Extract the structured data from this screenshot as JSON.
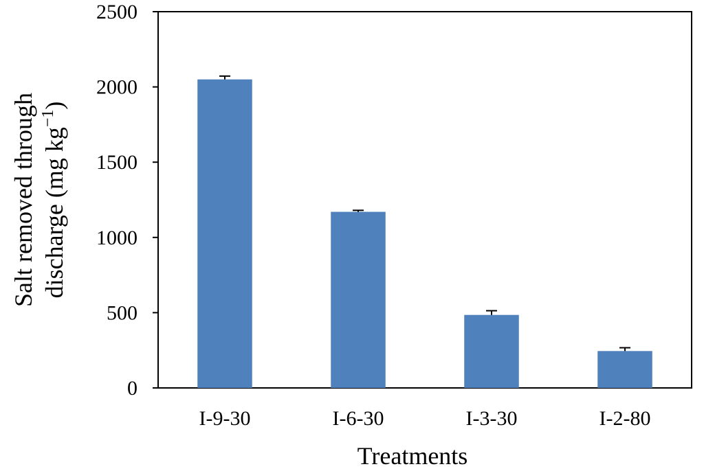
{
  "chart_data": {
    "type": "bar",
    "categories": [
      "I-9-30",
      "I-6-30",
      "I-3-30",
      "I-2-80"
    ],
    "values": [
      2050,
      1170,
      485,
      245
    ],
    "errors": [
      22,
      10,
      28,
      22
    ],
    "xlabel": "Treatments",
    "ylabel_line1": "Salt removed through",
    "ylabel_line2_main": "discharge (mg kg",
    "ylabel_line2_sup": "−1",
    "ylabel_line2_end": ")",
    "ylim": [
      0,
      2500
    ],
    "yticks": [
      "0",
      "500",
      "1000",
      "1500",
      "2000",
      "2500"
    ],
    "bar_color": "#4F81BD",
    "grid": false,
    "legend": "none"
  }
}
